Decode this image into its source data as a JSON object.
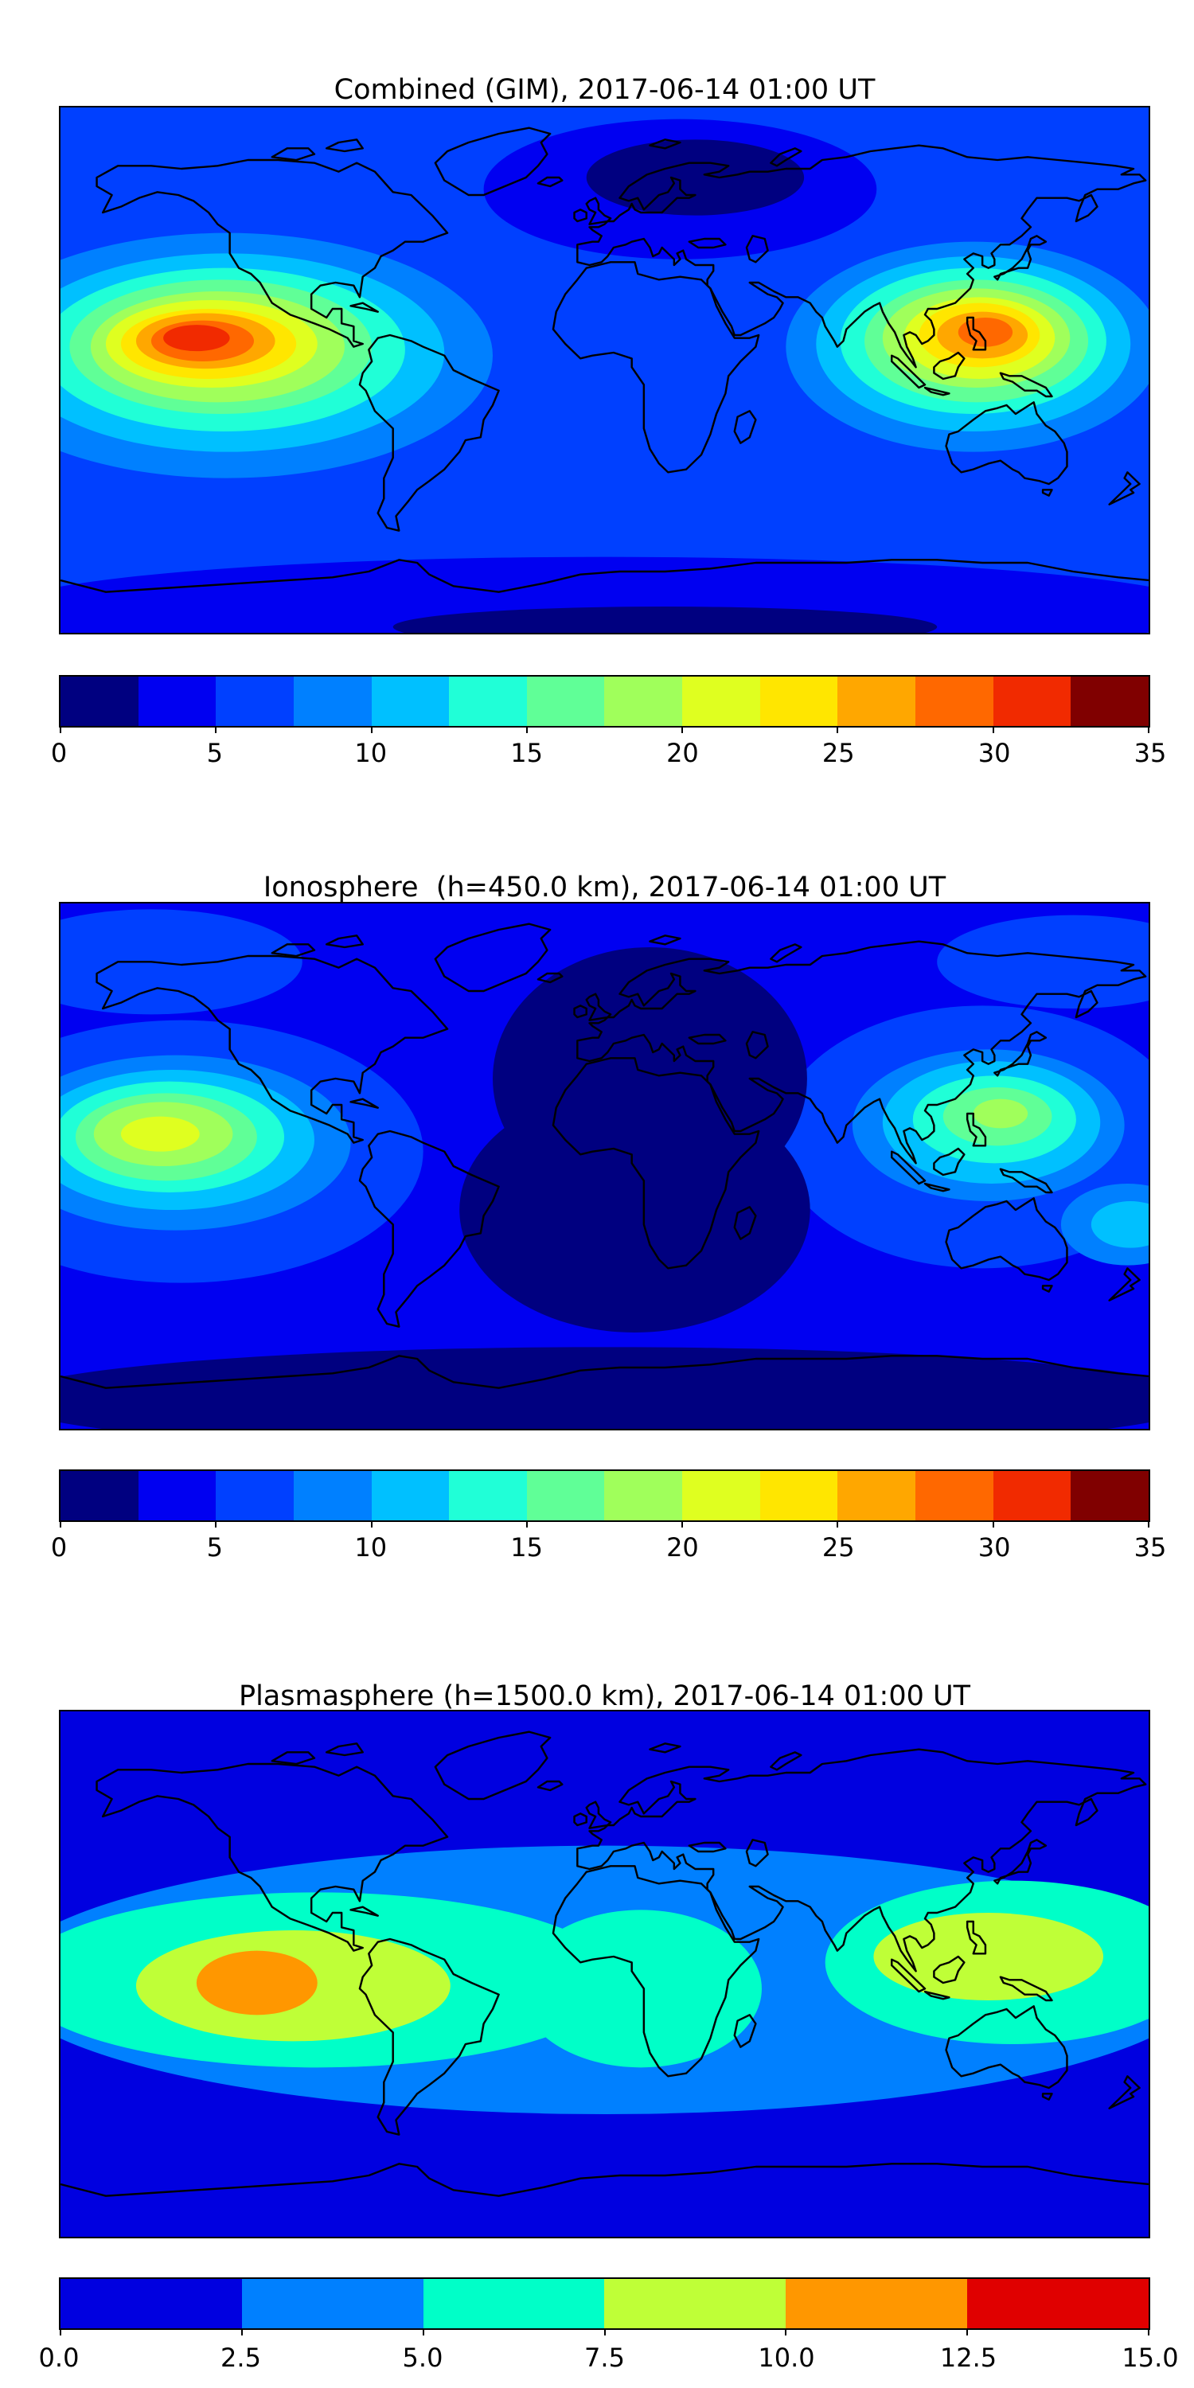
{
  "page": {
    "background": "#ffffff",
    "description": "Three stacked global TEC contour maps with jet colorbars"
  },
  "chart_data": [
    {
      "type": "heatmap",
      "title": "Combined (GIM), 2017-06-14 01:00 UT",
      "datetime": "2017-06-14 01:00 UT",
      "projection": "equirectangular-world-map",
      "lon_range": [
        -180,
        180
      ],
      "lat_range": [
        -90,
        90
      ],
      "colormap": "jet",
      "levels": {
        "min": 0,
        "max": 35,
        "step": 2.5
      },
      "colorbar_tick_values": [
        0,
        5,
        10,
        15,
        20,
        25,
        30,
        35
      ],
      "colorbar_tick_labels": [
        "0",
        "5",
        "10",
        "15",
        "20",
        "25",
        "30",
        "35"
      ],
      "colors": [
        "#000080",
        "#0000f1",
        "#0040ff",
        "#0080ff",
        "#00c0ff",
        "#20ffd7",
        "#60ff97",
        "#a0ff5b",
        "#dfff20",
        "#ffe600",
        "#ffa700",
        "#ff6800",
        "#f12a00",
        "#800000"
      ],
      "base_color": "#0040ff",
      "features": {
        "max_region": "Equatorial eastern Pacific near lon -135, lat 10, peak ~32",
        "secondary_max": "East Asia / western Pacific near lon 125, lat 12, peak ~28",
        "min_region": "Northern Europe / high northern latitudes and southern polar band, ~0-5"
      },
      "regions": [
        {
          "lon": 25,
          "lat": 62,
          "rx": 65,
          "ry": 24,
          "c": 1
        },
        {
          "lon": 30,
          "lat": 66,
          "rx": 36,
          "ry": 13,
          "c": 0
        },
        {
          "lon": 0,
          "lat": -82,
          "rx": 200,
          "ry": 18,
          "c": 1
        },
        {
          "lon": 20,
          "lat": -88,
          "rx": 90,
          "ry": 7,
          "c": 0
        },
        {
          "lon": -125,
          "lat": 5,
          "rx": 88,
          "ry": 42,
          "c": 3
        },
        {
          "lon": -125,
          "lat": 6,
          "rx": 72,
          "ry": 34,
          "c": 4
        },
        {
          "lon": -126,
          "lat": 7,
          "rx": 60,
          "ry": 28,
          "c": 5
        },
        {
          "lon": -127,
          "lat": 8,
          "rx": 50,
          "ry": 23,
          "c": 6
        },
        {
          "lon": -128,
          "lat": 8,
          "rx": 42,
          "ry": 19,
          "c": 7
        },
        {
          "lon": -130,
          "lat": 9,
          "rx": 35,
          "ry": 15,
          "c": 8
        },
        {
          "lon": -131,
          "lat": 9,
          "rx": 29,
          "ry": 12,
          "c": 9
        },
        {
          "lon": -132,
          "lat": 10,
          "rx": 23,
          "ry": 9.5,
          "c": 10
        },
        {
          "lon": -133,
          "lat": 10,
          "rx": 17,
          "ry": 7,
          "c": 11
        },
        {
          "lon": -135,
          "lat": 11,
          "rx": 11,
          "ry": 4.5,
          "c": 12
        },
        {
          "lon": 122,
          "lat": 8,
          "rx": 62,
          "ry": 36,
          "c": 3
        },
        {
          "lon": 122,
          "lat": 9,
          "rx": 52,
          "ry": 30,
          "c": 4
        },
        {
          "lon": 122,
          "lat": 10,
          "rx": 44,
          "ry": 25,
          "c": 5
        },
        {
          "lon": 123,
          "lat": 10,
          "rx": 37,
          "ry": 21,
          "c": 6
        },
        {
          "lon": 123,
          "lat": 11,
          "rx": 31,
          "ry": 17,
          "c": 7
        },
        {
          "lon": 124,
          "lat": 11,
          "rx": 25,
          "ry": 14,
          "c": 8
        },
        {
          "lon": 124,
          "lat": 12,
          "rx": 20,
          "ry": 11,
          "c": 9
        },
        {
          "lon": 125,
          "lat": 12,
          "rx": 15,
          "ry": 8,
          "c": 10
        },
        {
          "lon": 126,
          "lat": 13,
          "rx": 9,
          "ry": 5,
          "c": 11
        }
      ]
    },
    {
      "type": "heatmap",
      "title": "Ionosphere  (h=450.0 km), 2017-06-14 01:00 UT",
      "datetime": "2017-06-14 01:00 UT",
      "altitude_km": 450.0,
      "projection": "equirectangular-world-map",
      "lon_range": [
        -180,
        180
      ],
      "lat_range": [
        -90,
        90
      ],
      "colormap": "jet",
      "levels": {
        "min": 0,
        "max": 35,
        "step": 2.5
      },
      "colorbar_tick_values": [
        0,
        5,
        10,
        15,
        20,
        25,
        30,
        35
      ],
      "colorbar_tick_labels": [
        "0",
        "5",
        "10",
        "15",
        "20",
        "25",
        "30",
        "35"
      ],
      "colors": [
        "#000080",
        "#0000f1",
        "#0040ff",
        "#0080ff",
        "#00c0ff",
        "#20ffd7",
        "#60ff97",
        "#a0ff5b",
        "#dfff20",
        "#ffe600",
        "#ffa700",
        "#ff6800",
        "#f12a00",
        "#800000"
      ],
      "base_color": "#0000f1",
      "features": {
        "max_region": "Equatorial central Pacific near lon -145, lat 10, peak ~22",
        "secondary_max": "East Asia / western Pacific near lon 130, lat 17, peak ~18",
        "min_region": "Large dark minimum over Europe, Africa and Atlantic, ~0-2.5"
      },
      "regions": [
        {
          "lon": -140,
          "lat": 5,
          "rx": 80,
          "ry": 45,
          "c": 2
        },
        {
          "lon": 125,
          "lat": 10,
          "rx": 68,
          "ry": 45,
          "c": 2
        },
        {
          "lon": -150,
          "lat": 70,
          "rx": 50,
          "ry": 18,
          "c": 2
        },
        {
          "lon": 155,
          "lat": 70,
          "rx": 45,
          "ry": 16,
          "c": 2
        },
        {
          "lon": 15,
          "lat": 30,
          "rx": 52,
          "ry": 45,
          "c": 0
        },
        {
          "lon": 10,
          "lat": -15,
          "rx": 58,
          "ry": 42,
          "c": 0
        },
        {
          "lon": 0,
          "lat": -80,
          "rx": 200,
          "ry": 18,
          "c": 0
        },
        {
          "lon": -142,
          "lat": 8,
          "rx": 58,
          "ry": 30,
          "c": 3
        },
        {
          "lon": -143,
          "lat": 9,
          "rx": 47,
          "ry": 24,
          "c": 4
        },
        {
          "lon": -144,
          "lat": 10,
          "rx": 38,
          "ry": 19,
          "c": 5
        },
        {
          "lon": -145,
          "lat": 10,
          "rx": 30,
          "ry": 15,
          "c": 6
        },
        {
          "lon": -146,
          "lat": 11,
          "rx": 23,
          "ry": 11,
          "c": 7
        },
        {
          "lon": -147,
          "lat": 11,
          "rx": 13,
          "ry": 6,
          "c": 8
        },
        {
          "lon": 127,
          "lat": 14,
          "rx": 45,
          "ry": 26,
          "c": 3
        },
        {
          "lon": 128,
          "lat": 15,
          "rx": 36,
          "ry": 21,
          "c": 4
        },
        {
          "lon": 129,
          "lat": 16,
          "rx": 27,
          "ry": 15,
          "c": 5
        },
        {
          "lon": 130,
          "lat": 17,
          "rx": 18,
          "ry": 10,
          "c": 6
        },
        {
          "lon": 131,
          "lat": 18,
          "rx": 9,
          "ry": 5,
          "c": 7
        },
        {
          "lon": 173,
          "lat": -20,
          "rx": 22,
          "ry": 14,
          "c": 3
        },
        {
          "lon": 174,
          "lat": -20,
          "rx": 13,
          "ry": 8,
          "c": 4
        }
      ]
    },
    {
      "type": "heatmap",
      "title": "Plasmasphere (h=1500.0 km), 2017-06-14 01:00 UT",
      "datetime": "2017-06-14 01:00 UT",
      "altitude_km": 1500.0,
      "projection": "equirectangular-world-map",
      "lon_range": [
        -180,
        180
      ],
      "lat_range": [
        -90,
        90
      ],
      "colormap": "jet",
      "levels": {
        "min": 0,
        "max": 15,
        "step": 2.5
      },
      "colorbar_tick_values": [
        0,
        2.5,
        5,
        7.5,
        10,
        12.5,
        15
      ],
      "colorbar_tick_labels": [
        "0.0",
        "2.5",
        "5.0",
        "7.5",
        "10.0",
        "12.5",
        "15.0"
      ],
      "colors": [
        "#0000e0",
        "#0080ff",
        "#00ffc8",
        "#bfff37",
        "#ff9700",
        "#e00000"
      ],
      "base_color": "#0000e0",
      "features": {
        "max_region": "Equatorial eastern Pacific near lon -115, lat -3, peak ~12",
        "structure": "Broad equatorial belt 5-10 spanning most longitudes with gap near lon 60",
        "min_region": "High latitudes north and south, 0-2.5"
      },
      "regions": [
        {
          "lon": 0,
          "lat": -2,
          "rx": 200,
          "ry": 46,
          "c": 1
        },
        {
          "lon": -95,
          "lat": -2,
          "rx": 100,
          "ry": 30,
          "c": 2
        },
        {
          "lon": 12,
          "lat": -5,
          "rx": 40,
          "ry": 27,
          "c": 2
        },
        {
          "lon": 135,
          "lat": 4,
          "rx": 62,
          "ry": 28,
          "c": 2
        },
        {
          "lon": -103,
          "lat": -4,
          "rx": 52,
          "ry": 19,
          "c": 3
        },
        {
          "lon": 127,
          "lat": 6,
          "rx": 38,
          "ry": 15,
          "c": 3
        },
        {
          "lon": -115,
          "lat": -3,
          "rx": 20,
          "ry": 11,
          "c": 4
        }
      ]
    }
  ]
}
